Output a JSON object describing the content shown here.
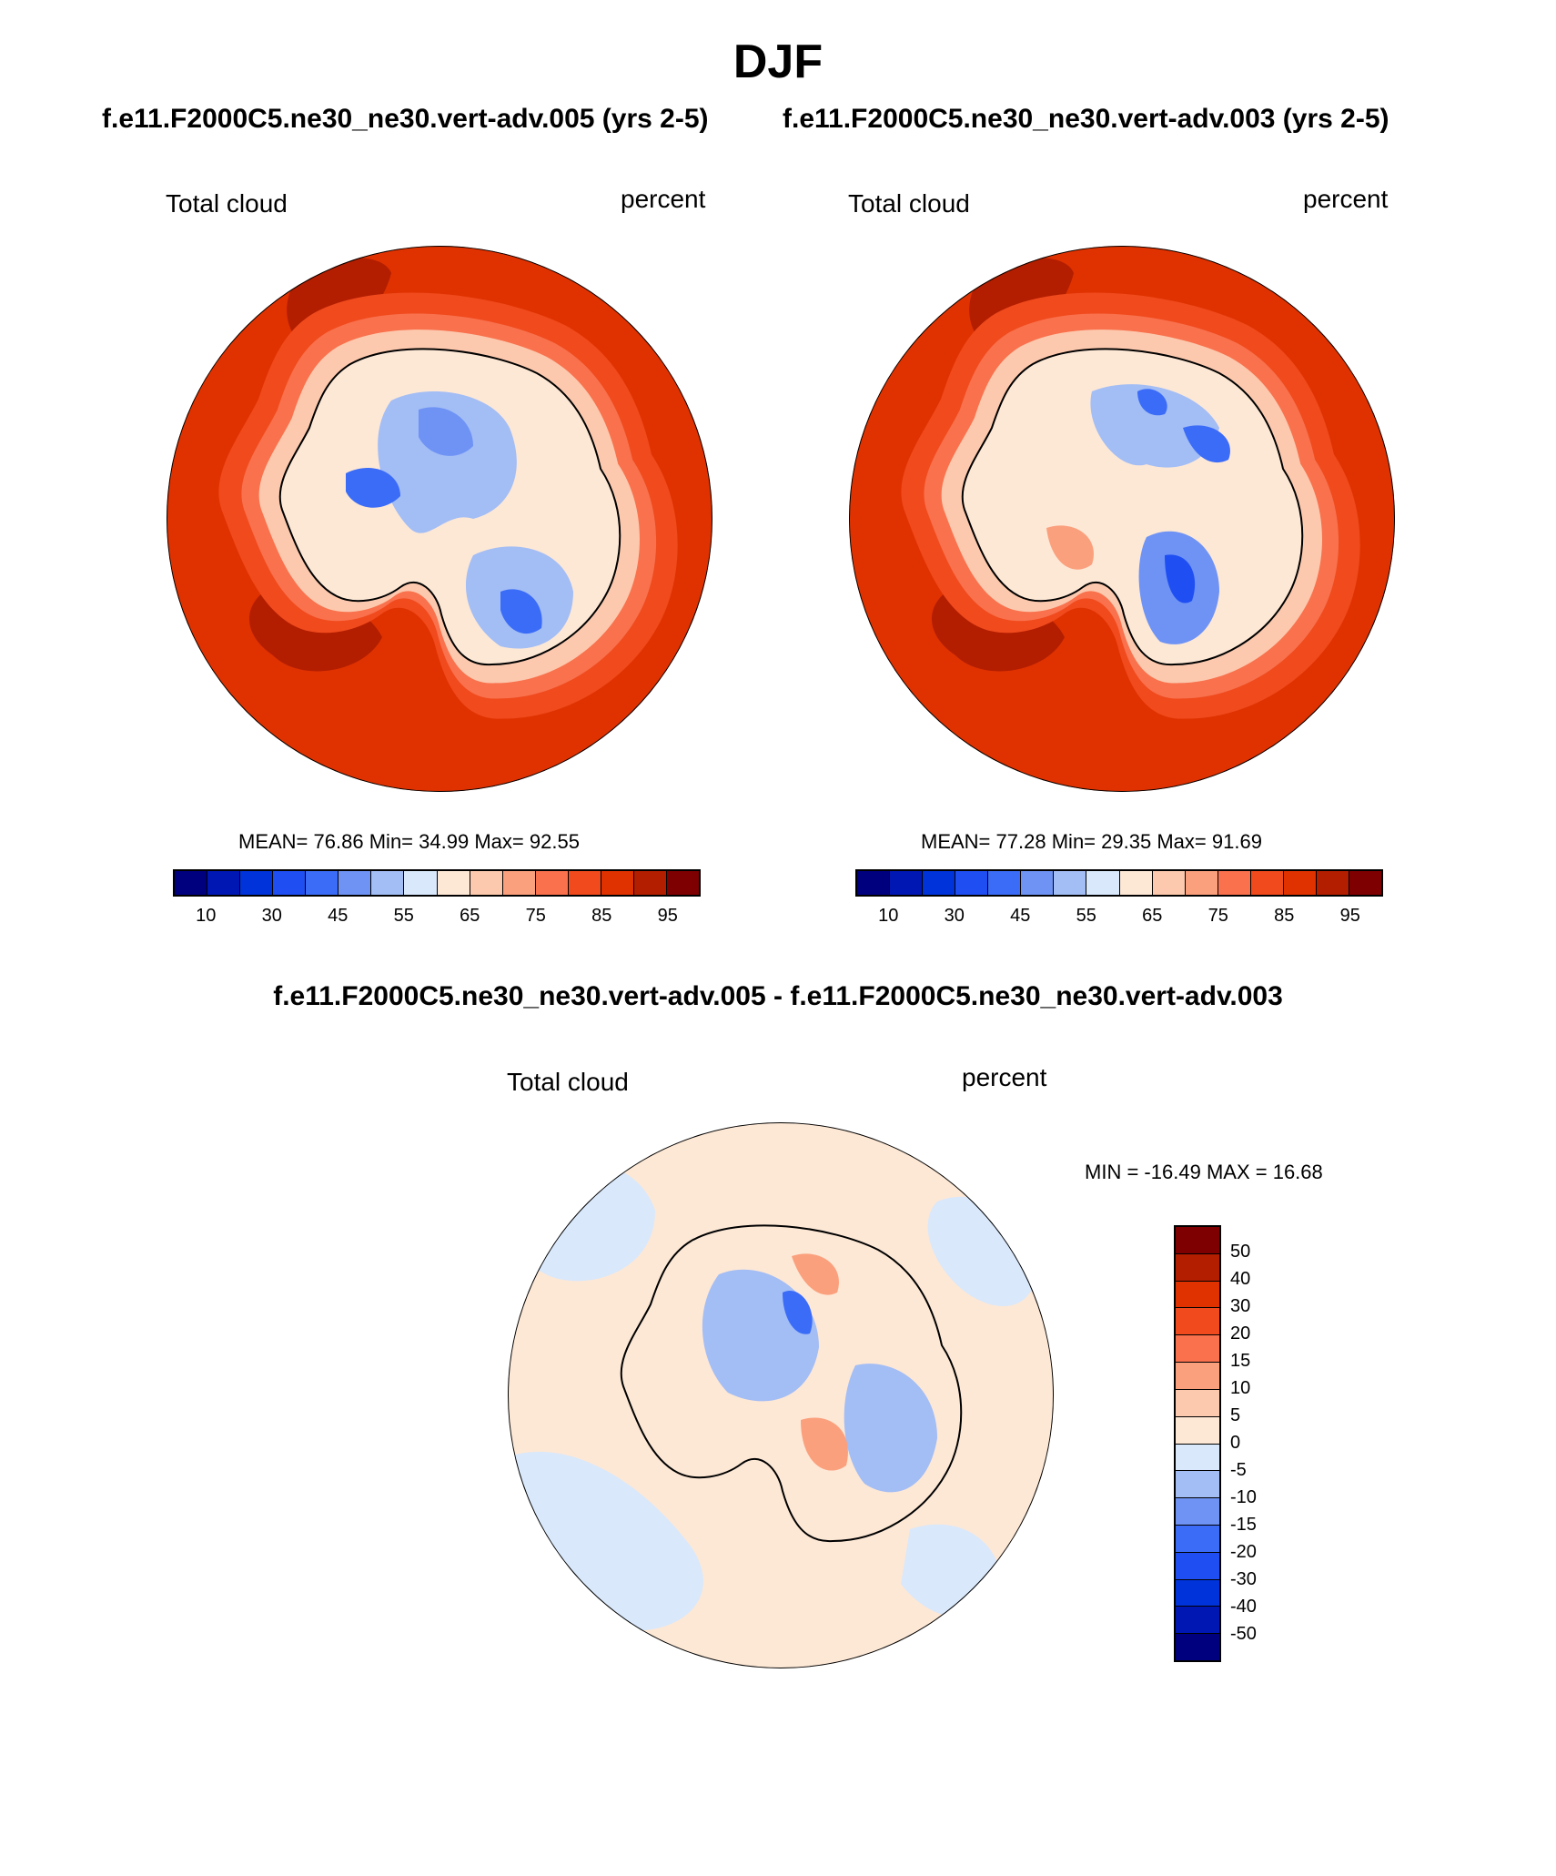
{
  "title": "DJF",
  "left_case_title": "f.e11.F2000C5.ne30_ne30.vert-adv.005 (yrs 2-5)",
  "right_case_title": "f.e11.F2000C5.ne30_ne30.vert-adv.003 (yrs 2-5)",
  "diff_title": "f.e11.F2000C5.ne30_ne30.vert-adv.005 - f.e11.F2000C5.ne30_ne30.vert-adv.003",
  "panels": {
    "left": {
      "variable": "Total cloud",
      "units": "percent",
      "mean_label": "MEAN=",
      "mean": "76.86",
      "min_label": "Min=",
      "min": "34.99",
      "max_label": "Max=",
      "max": "92.55"
    },
    "right": {
      "variable": "Total cloud",
      "units": "percent",
      "mean_label": "MEAN=",
      "mean": "77.28",
      "min_label": "Min=",
      "min": "29.35",
      "max_label": "Max=",
      "max": "91.69"
    },
    "diff": {
      "variable": "Total cloud",
      "units": "percent",
      "min_label": "MIN =",
      "min": "-16.49",
      "max_label": "MAX =",
      "max": "16.68"
    }
  },
  "field_colorbar": {
    "colors": [
      "#00007f",
      "#0017b3",
      "#0033d9",
      "#1f4ff2",
      "#3b6cf7",
      "#6e93f5",
      "#a3bdf5",
      "#d9e8fb",
      "#fde8d6",
      "#fcc9ae",
      "#fba07d",
      "#f9714d",
      "#f04a1d",
      "#e03200",
      "#b31e00",
      "#7f0000"
    ],
    "tick_labels": [
      "10",
      "30",
      "45",
      "55",
      "65",
      "75",
      "85",
      "95"
    ]
  },
  "diff_colorbar": {
    "colors": [
      "#7f0000",
      "#b31e00",
      "#e03200",
      "#f04a1d",
      "#f9714d",
      "#fba07d",
      "#fcc9ae",
      "#fde8d6",
      "#d9e8fb",
      "#a3bdf5",
      "#6e93f5",
      "#3b6cf7",
      "#1f4ff2",
      "#0033d9",
      "#0017b3",
      "#00007f"
    ],
    "tick_labels": [
      "50",
      "40",
      "30",
      "20",
      "15",
      "10",
      "5",
      "0",
      "-5",
      "-10",
      "-15",
      "-20",
      "-30",
      "-40",
      "-50"
    ]
  }
}
